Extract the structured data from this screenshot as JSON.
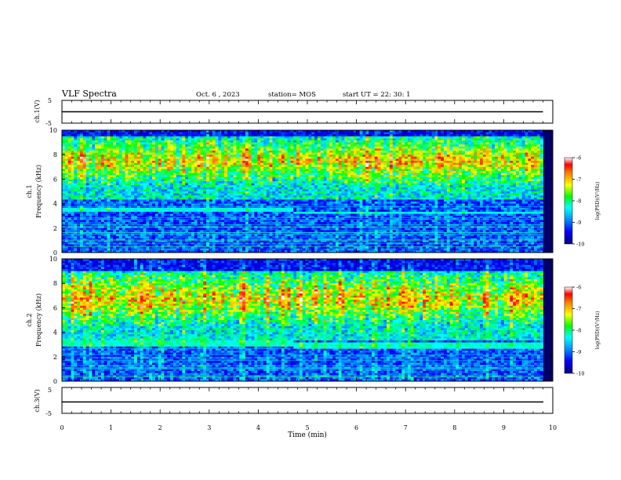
{
  "header": {
    "title": "VLF Spectra",
    "date": "Oct. 6 , 2023",
    "station": "station= MOS",
    "start": "start UT =  22: 30: 1"
  },
  "chart_data": [
    {
      "type": "line",
      "name": "ch1-voltage",
      "ylabel": "ch.1(V)",
      "ylim": [
        -5,
        5
      ],
      "yticks": [
        "5",
        "-5"
      ],
      "x": [
        0,
        9.8
      ],
      "y": [
        0,
        0
      ]
    },
    {
      "type": "heatmap",
      "name": "ch1-spectrogram",
      "ylabel": "ch.1\nFrequency (kHz)",
      "ylim": [
        0,
        10
      ],
      "yticks": [
        "0",
        "2",
        "4",
        "6",
        "8",
        "10"
      ],
      "xlim": [
        0,
        9.8
      ],
      "colorbar": {
        "range": [
          -10,
          -6
        ],
        "ticks": [
          "-6",
          "-7",
          "-8",
          "-9",
          "-10"
        ],
        "label": "log(PSD)(V²/Hz)"
      },
      "bands": [
        {
          "fmin": 5.5,
          "fmax": 9.5,
          "level": -7.0,
          "comment": "strong sferic band"
        },
        {
          "fmin": 3.3,
          "fmax": 3.6,
          "level": -8.3,
          "x_change": 4.7
        }
      ]
    },
    {
      "type": "heatmap",
      "name": "ch2-spectrogram",
      "ylabel": "ch.2\nFrequency (kHz)",
      "ylim": [
        0,
        10
      ],
      "yticks": [
        "0",
        "2",
        "4",
        "6",
        "8",
        "10"
      ],
      "xlim": [
        0,
        9.8
      ],
      "colorbar": {
        "range": [
          -10,
          -6
        ],
        "ticks": [
          "-6",
          "-7",
          "-8",
          "-9",
          "-10"
        ],
        "label": "log(PSD)(V²/Hz)"
      },
      "bands": [
        {
          "fmin": 4.5,
          "fmax": 9.0,
          "level": -7.0
        },
        {
          "fmin": 2.9,
          "fmax": 3.3,
          "level": -8.2,
          "x_change": 4.7
        }
      ]
    },
    {
      "type": "line",
      "name": "ch3-voltage",
      "ylabel": "ch.3(V)",
      "ylim": [
        -5,
        5
      ],
      "yticks": [
        "5",
        "-5"
      ],
      "x": [
        0,
        9.8
      ],
      "y": [
        0,
        0
      ]
    }
  ],
  "xaxis": {
    "label": "Time (min)",
    "range": [
      0,
      10
    ],
    "ticks": [
      "0",
      "1",
      "2",
      "3",
      "4",
      "5",
      "6",
      "7",
      "8",
      "9",
      "10"
    ]
  }
}
